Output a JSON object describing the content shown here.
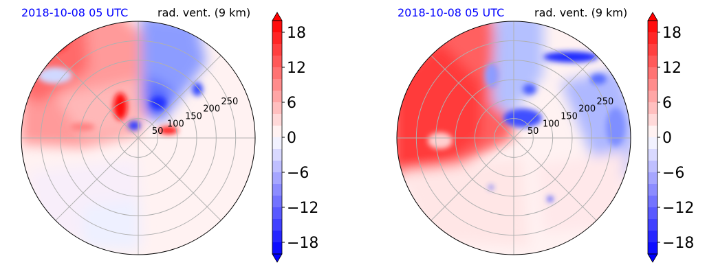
{
  "colors": {
    "title_date": "#0000ff",
    "title_var": "#000000",
    "pos_max": "#ff0000",
    "neg_max": "#0000ff",
    "grid": "#b0b0b0"
  },
  "colorbar": {
    "min": -20,
    "max": 20,
    "step": 2,
    "ticks": [
      18,
      12,
      6,
      0,
      -6,
      -12,
      -18
    ],
    "tick_labels": [
      "18",
      "12",
      "6",
      "0",
      "−6",
      "−12",
      "−18"
    ],
    "extend": "both"
  },
  "chart_data": [
    {
      "type": "heatmap",
      "projection": "polar",
      "title_left": "2018-10-08 05 UTC",
      "title_right": "rad. vent. (9 km)",
      "r_ticks": [
        50,
        100,
        150,
        200,
        250
      ],
      "r_tick_labels": [
        "50",
        "100",
        "150",
        "200",
        "250"
      ],
      "r_max": 300,
      "theta_grid_deg": [
        0,
        45,
        90,
        135,
        180,
        225,
        270,
        315
      ],
      "value_range": [
        -20,
        20
      ],
      "grid": true
    },
    {
      "type": "heatmap",
      "projection": "polar",
      "title_left": "2018-10-08 05 UTC",
      "title_right": "rad. vent. (9 km)",
      "r_ticks": [
        50,
        100,
        150,
        200,
        250
      ],
      "r_tick_labels": [
        "50",
        "100",
        "150",
        "200",
        "250"
      ],
      "r_max": 300,
      "theta_grid_deg": [
        0,
        45,
        90,
        135,
        180,
        225,
        270,
        315
      ],
      "value_range": [
        -20,
        20
      ],
      "grid": true
    }
  ]
}
